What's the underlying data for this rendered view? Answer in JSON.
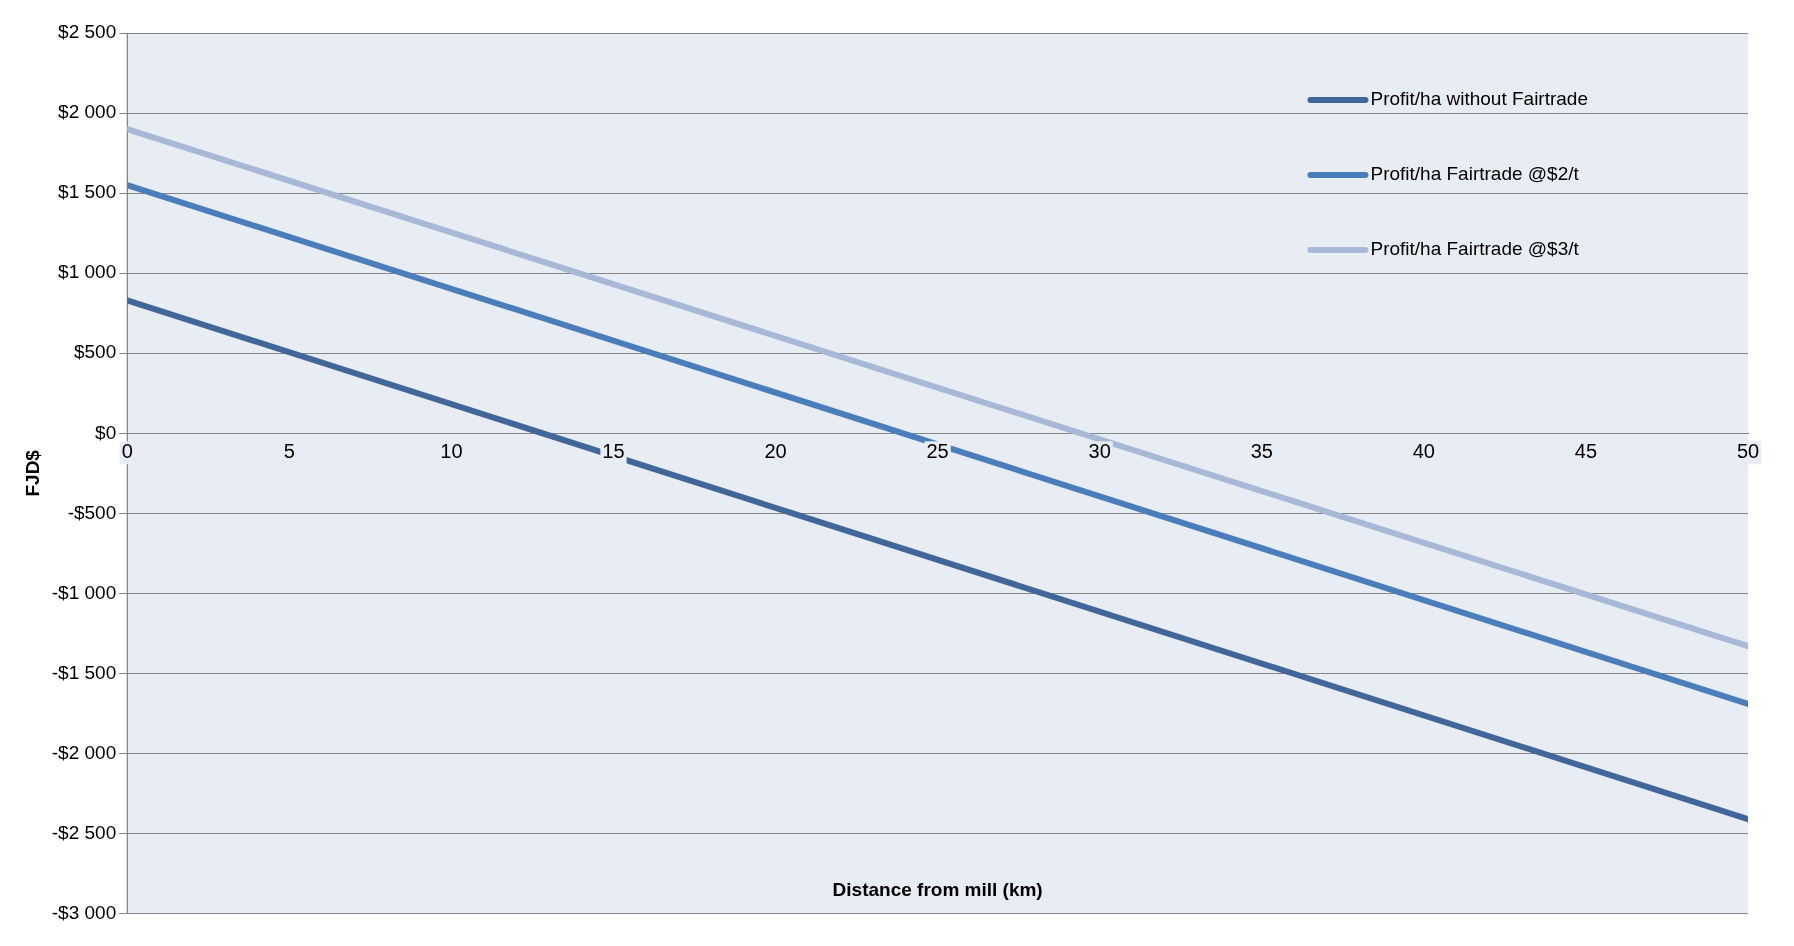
{
  "chart_data": {
    "type": "line",
    "xlabel": "Distance from mill (km)",
    "ylabel": "FJD$",
    "x": [
      0,
      50
    ],
    "series": [
      {
        "name": "Profit/ha without Fairtrade",
        "color": "#41679a",
        "values": [
          830,
          -2410
        ]
      },
      {
        "name": "Profit/ha Fairtrade @$2/t",
        "color": "#4a7ebb",
        "values": [
          1550,
          -1690
        ]
      },
      {
        "name": "Profit/ha Fairtrade @$3/t",
        "color": "#a7b9d7",
        "values": [
          1900,
          -1330
        ]
      }
    ],
    "xlim": [
      0,
      50
    ],
    "xticks": [
      0,
      5,
      10,
      15,
      20,
      25,
      30,
      35,
      40,
      45,
      50
    ],
    "ylim": [
      -3000,
      2500
    ],
    "yticks": [
      {
        "value": -3000,
        "label": "-$3 000"
      },
      {
        "value": -2500,
        "label": "-$2 500"
      },
      {
        "value": -2000,
        "label": "-$2 000"
      },
      {
        "value": -1500,
        "label": "-$1 500"
      },
      {
        "value": -1000,
        "label": "-$1 000"
      },
      {
        "value": -500,
        "label": "-$500"
      },
      {
        "value": 0,
        "label": "$0"
      },
      {
        "value": 500,
        "label": "$500"
      },
      {
        "value": 1000,
        "label": "$1 000"
      },
      {
        "value": 1500,
        "label": "$1 500"
      },
      {
        "value": 2000,
        "label": "$2 000"
      },
      {
        "value": 2500,
        "label": "$2 500"
      }
    ],
    "grid": "y",
    "legend": "top right",
    "marker": "none",
    "line_style": "solid"
  }
}
